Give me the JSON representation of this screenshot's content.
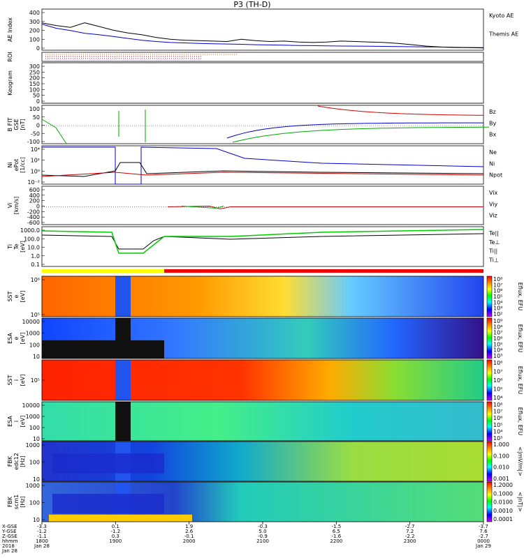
{
  "title": "P3 (TH-D)",
  "chart_data": [
    {
      "type": "line",
      "panel": "ae",
      "ylabel": "AE Index",
      "ylim": [
        0,
        450
      ],
      "yticks": [
        "400",
        "300",
        "200",
        "100",
        "0"
      ],
      "legend": [
        "Kyoto AE",
        "Themis AE"
      ],
      "colors": [
        "#0000cc",
        "#000000"
      ],
      "series": [
        {
          "name": "Kyoto AE",
          "values": [
            285,
            240,
            215,
            185,
            170,
            150,
            130,
            110,
            95,
            85,
            80,
            75,
            70,
            68,
            65,
            60,
            58,
            55,
            52,
            50,
            48,
            46,
            45,
            44,
            42,
            40,
            38,
            36,
            35,
            33,
            30,
            28
          ]
        },
        {
          "name": "Themis AE",
          "values": [
            300,
            270,
            250,
            300,
            260,
            220,
            190,
            170,
            140,
            120,
            110,
            105,
            100,
            95,
            120,
            105,
            95,
            100,
            90,
            85,
            90,
            100,
            95,
            90,
            85,
            75,
            60,
            45,
            35,
            30,
            28,
            25
          ]
        }
      ]
    },
    {
      "type": "line",
      "panel": "roi",
      "ylabel": "ROI"
    },
    {
      "type": "heatmap",
      "panel": "keogram",
      "ylabel": "Keogram",
      "yticks": [
        "300",
        "250",
        "200",
        "150",
        "100",
        "50",
        "0"
      ]
    },
    {
      "type": "line",
      "panel": "bfit",
      "ylabel": "B FIT\nGSE\n[nT]",
      "ylim": [
        -100,
        100
      ],
      "yticks": [
        "100",
        "50",
        "0",
        "-50",
        "-100"
      ],
      "legend": [
        "Bz",
        "By",
        "Bx"
      ],
      "colors": [
        "#cc0000",
        "#00aa00",
        "#0000cc"
      ]
    },
    {
      "type": "line",
      "panel": "density",
      "ylabel": "Ni\nePot\n[1/cc]",
      "yticks": [
        "10⁴",
        "10²",
        "10⁰",
        "10⁻²"
      ],
      "legend": [
        "Ne",
        "Ni",
        "Npot"
      ],
      "colors": [
        "#cc0000",
        "#000000",
        "#0000cc"
      ]
    },
    {
      "type": "line",
      "panel": "velocity",
      "ylabel": "Vi\n[km/s]",
      "ylim": [
        -700,
        700
      ],
      "yticks": [
        "600",
        "400",
        "200",
        "0",
        "-200",
        "-400",
        "-600"
      ],
      "legend": [
        "Vix",
        "Viy",
        "Viz"
      ],
      "colors": [
        "#cc0000",
        "#00aa00",
        "#0000cc"
      ]
    },
    {
      "type": "line",
      "panel": "temperature",
      "ylabel": "Ti\nTe\n[eV]",
      "yticks": [
        "1000.0",
        "100.0",
        "10.0",
        "1.0",
        "0.1"
      ],
      "legend": [
        "Te||",
        "Te⊥",
        "Ti||",
        "Ti⊥"
      ],
      "colors": [
        "#000000",
        "#cc0000",
        "#00aa00",
        "#0000cc"
      ]
    },
    {
      "type": "heatmap",
      "panel": "sst-e",
      "ylabel": "SST\ne\n[eV]",
      "yticks": [
        "10⁶",
        "10⁵"
      ],
      "cbar": [
        "10⁸",
        "10⁷",
        "10⁶",
        "10⁵",
        "10⁴",
        "10³",
        "10²"
      ],
      "cbarLabel": "Eflux, EFU"
    },
    {
      "type": "heatmap",
      "panel": "esa-e",
      "ylabel": "ESA\ne\n[eV]",
      "yticks": [
        "10000",
        "1000",
        "100",
        "10"
      ],
      "cbar": [
        "10⁹",
        "10⁸",
        "10⁷",
        "10⁶",
        "10⁵",
        "10⁴",
        "10³"
      ],
      "cbarLabel": "Eflux, EFU"
    },
    {
      "type": "heatmap",
      "panel": "sst-i",
      "ylabel": "SST\ni\n[eV]",
      "yticks": [
        "10⁵"
      ],
      "cbar": [
        "10⁸",
        "10⁷",
        "10⁶",
        "10⁵",
        "10⁴"
      ],
      "cbarLabel": "Eflux, EFU"
    },
    {
      "type": "heatmap",
      "panel": "esa-i",
      "ylabel": "ESA\ni\n[eV]",
      "yticks": [
        "10000",
        "1000",
        "100",
        "10"
      ],
      "cbar": [
        "10⁸",
        "10⁷",
        "10⁶",
        "10⁵",
        "10⁴",
        "10³"
      ],
      "cbarLabel": "Eflux, EFU"
    },
    {
      "type": "heatmap",
      "panel": "fbk-e",
      "ylabel": "FBK\nedc12\n[Hz]",
      "yticks": [
        "1000",
        "100",
        "10"
      ],
      "cbar": [
        "1.000",
        "0.100",
        "0.010",
        "0.001"
      ],
      "cbarLabel": "<|mV/m|>"
    },
    {
      "type": "heatmap",
      "panel": "fbk-b",
      "ylabel": "FBK\nscm1\n[Hz]",
      "yticks": [
        "1000",
        "100",
        "10"
      ],
      "cbar": [
        "1.2000",
        "0.1000",
        "0.0100",
        "0.0010",
        "0.0001"
      ],
      "cbarLabel": "<|nT|>"
    }
  ],
  "xaxis": {
    "row_labels": [
      "X-GSE",
      "Y-GSE",
      "Z-GSE",
      "hhmm",
      "2018"
    ],
    "row_labels_extra": [
      "",
      "",
      "",
      "",
      "Jan 28"
    ],
    "ticks": [
      {
        "x": "-3.3",
        "y": "-1.2",
        "z": "-1.1",
        "hhmm": "1800",
        "date": "Jan 28"
      },
      {
        "x": "0.1",
        "y": "-1.2",
        "z": "0.3",
        "hhmm": "1900",
        "date": ""
      },
      {
        "x": "1.9",
        "y": "2.6",
        "z": "-0.1",
        "hhmm": "2000",
        "date": ""
      },
      {
        "x": "-0.3",
        "y": "5.0",
        "z": "-0.9",
        "hhmm": "2100",
        "date": ""
      },
      {
        "x": "-1.5",
        "y": "6.5",
        "z": "-1.6",
        "hhmm": "2200",
        "date": ""
      },
      {
        "x": "-2.7",
        "y": "7.2",
        "z": "-2.2",
        "hhmm": "2300",
        "date": ""
      },
      {
        "x": "-3.7",
        "y": "7.6",
        "z": "-2.7",
        "hhmm": "0000",
        "date": "Jan 29"
      }
    ]
  },
  "colors": {
    "colorbar": [
      "#cc00ff",
      "#0000ff",
      "#00ffff",
      "#00ff00",
      "#ffff00",
      "#ff8800",
      "#ff0000"
    ]
  }
}
